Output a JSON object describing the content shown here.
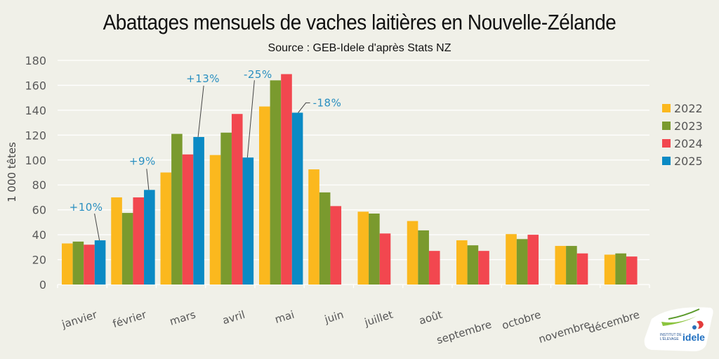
{
  "chart_data": {
    "type": "bar",
    "title": "Abattages mensuels de vaches laitières en Nouvelle-Zélande",
    "subtitle": "Source :  GEB-Idele d'après Stats NZ",
    "xlabel": "",
    "ylabel": "1 000 têtes",
    "ylim": [
      0,
      180
    ],
    "yticks": [
      0,
      20,
      40,
      60,
      80,
      100,
      120,
      140,
      160,
      180
    ],
    "grid": true,
    "legend_position": "right",
    "categories": [
      "janvier",
      "février",
      "mars",
      "avril",
      "mai",
      "juin",
      "juillet",
      "août",
      "septembre",
      "octobre",
      "novembre",
      "décembre"
    ],
    "series": [
      {
        "name": "2022",
        "color": "#fbb81e",
        "values": [
          33,
          70,
          90,
          104,
          143,
          92.5,
          58.5,
          51,
          35.5,
          40.5,
          31,
          24
        ]
      },
      {
        "name": "2023",
        "color": "#7a9a2e",
        "values": [
          34.5,
          57.5,
          121,
          122,
          164,
          74,
          57,
          43.5,
          31.5,
          36.5,
          31,
          25
        ]
      },
      {
        "name": "2024",
        "color": "#f2474f",
        "values": [
          32,
          70,
          104.5,
          137,
          169,
          63,
          41,
          27,
          27,
          40,
          25,
          22.5
        ]
      },
      {
        "name": "2025",
        "color": "#0b8ac4",
        "values": [
          35.5,
          76,
          118.5,
          102,
          138,
          null,
          null,
          null,
          null,
          null,
          null,
          null
        ]
      }
    ],
    "annotations": [
      {
        "category": "janvier",
        "series": "2025",
        "text": "+10%"
      },
      {
        "category": "février",
        "series": "2025",
        "text": "+9%"
      },
      {
        "category": "mars",
        "series": "2025",
        "text": "+13%"
      },
      {
        "category": "avril",
        "series": "2025",
        "text": "-25%"
      },
      {
        "category": "mai",
        "series": "2025",
        "text": "-18%"
      }
    ]
  },
  "logo": {
    "line1": "INSTITUT DE",
    "line2": "L'ÉLEVAGE",
    "brand": "idele"
  }
}
